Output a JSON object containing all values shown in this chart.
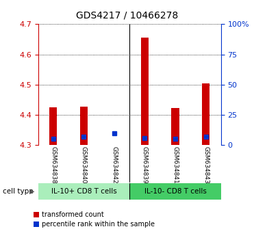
{
  "title": "GDS4217 / 10466278",
  "samples": [
    "GSM634838",
    "GSM634840",
    "GSM634842",
    "GSM634839",
    "GSM634841",
    "GSM634843"
  ],
  "red_top": [
    4.425,
    4.428,
    4.3,
    4.655,
    4.422,
    4.505
  ],
  "blue_values": [
    4.322,
    4.328,
    4.34,
    4.323,
    4.322,
    4.328
  ],
  "red_has_bar": [
    true,
    true,
    false,
    true,
    true,
    true
  ],
  "ymin": 4.3,
  "ymax": 4.7,
  "yticks_left": [
    4.3,
    4.4,
    4.5,
    4.6,
    4.7
  ],
  "yticks_right_values": [
    0,
    25,
    50,
    75,
    100
  ],
  "yticks_right_labels": [
    "0",
    "25",
    "50",
    "75",
    "100%"
  ],
  "groups": [
    {
      "label": "IL-10+ CD8 T cells",
      "start": 0,
      "end": 3
    },
    {
      "label": "IL-10- CD8 T cells",
      "start": 3,
      "end": 6
    }
  ],
  "bar_width": 0.25,
  "red_color": "#CC0000",
  "blue_color": "#0033CC",
  "left_axis_color": "#CC0000",
  "right_axis_color": "#0033CC",
  "tick_label_area_color": "#C8C8C8",
  "group1_color": "#AAEEBB",
  "group2_color": "#44CC66",
  "cell_type_label": "cell type",
  "legend_red": "transformed count",
  "legend_blue": "percentile rank within the sample"
}
